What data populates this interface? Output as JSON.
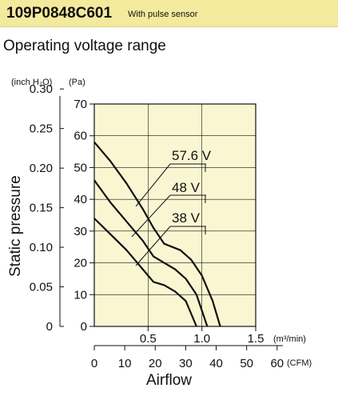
{
  "header": {
    "model": "109P0848C601",
    "description": "With pulse sensor"
  },
  "subtitle": "Operating voltage range",
  "colors": {
    "header_bg": "#f3ea9d",
    "plot_bg": "#fbf6d2",
    "line": "#111111"
  },
  "chart_data": {
    "type": "line",
    "ylabel": "Static pressure",
    "xlabel": "Airflow",
    "y_unit_left": "(inch H₂O)",
    "y_unit_right": "(Pa)",
    "x_unit_top": "(m³/min)",
    "x_unit_bottom": "(CFM)",
    "xlim": [
      0,
      1.5
    ],
    "ylim_pa": [
      0,
      70
    ],
    "x_ticks_m3min": [
      "0.5",
      "1.0",
      "1.5"
    ],
    "x_ticks_cfm": [
      "0",
      "10",
      "20",
      "30",
      "40",
      "50",
      "60"
    ],
    "y_ticks_pa": [
      "0",
      "10",
      "20",
      "30",
      "40",
      "50",
      "60",
      "70"
    ],
    "y_ticks_inch": [
      "0",
      "0.05",
      "0.10",
      "0.15",
      "0.20",
      "0.25",
      "0.30"
    ],
    "grid": true,
    "series": [
      {
        "name": "57.6 V",
        "x": [
          0,
          0.15,
          0.3,
          0.45,
          0.55,
          0.65,
          0.8,
          0.9,
          1.0,
          1.1,
          1.17
        ],
        "y": [
          58,
          52,
          45,
          37,
          31,
          26,
          24,
          21,
          16,
          8,
          0
        ]
      },
      {
        "name": "48 V",
        "x": [
          0,
          0.15,
          0.3,
          0.45,
          0.55,
          0.65,
          0.75,
          0.85,
          0.95,
          1.05
        ],
        "y": [
          46,
          39,
          33,
          27,
          22,
          20,
          18,
          15,
          10,
          0
        ]
      },
      {
        "name": "38 V",
        "x": [
          0,
          0.15,
          0.3,
          0.45,
          0.55,
          0.65,
          0.75,
          0.85,
          0.95
        ],
        "y": [
          34,
          29,
          24,
          18,
          14,
          13,
          11,
          8,
          0
        ]
      }
    ]
  }
}
